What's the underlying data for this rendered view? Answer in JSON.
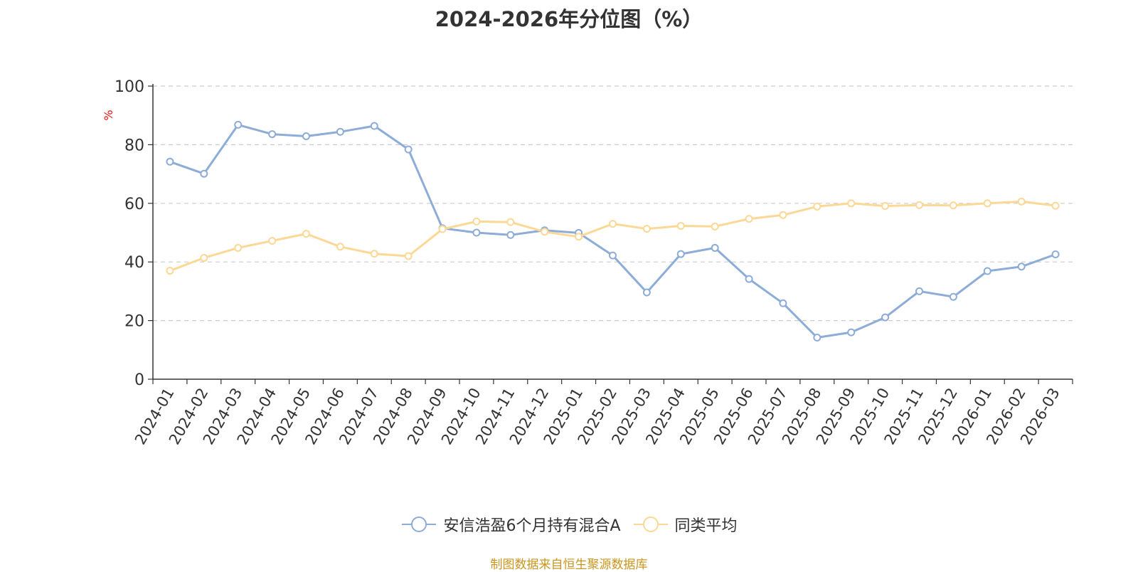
{
  "chart_data": {
    "type": "line",
    "title": "2024-2026年分位图（%）",
    "ylabel": "%",
    "xlabel": "",
    "ylim": [
      0,
      100
    ],
    "yticks": [
      0,
      20,
      40,
      60,
      80,
      100
    ],
    "grid": true,
    "legend_position": "bottom",
    "categories": [
      "2024-01",
      "2024-02",
      "2024-03",
      "2024-04",
      "2024-05",
      "2024-06",
      "2024-07",
      "2024-08",
      "2024-09",
      "2024-10",
      "2024-11",
      "2024-12",
      "2025-01",
      "2025-02",
      "2025-03",
      "2025-04",
      "2025-05",
      "2025-06",
      "2025-07",
      "2025-08",
      "2025-09",
      "2025-10",
      "2025-11",
      "2025-12",
      "2026-01",
      "2026-02",
      "2026-03"
    ],
    "series": [
      {
        "name": "安信浩盈6个月持有混合A",
        "color": "#8eacd8",
        "values": [
          74.2,
          70.1,
          86.8,
          83.6,
          82.9,
          84.4,
          86.4,
          78.4,
          51.5,
          50.0,
          49.2,
          50.8,
          49.9,
          42.2,
          29.6,
          42.7,
          44.8,
          34.2,
          25.9,
          14.2,
          16.0,
          21.1,
          30.0,
          28.1,
          36.9,
          38.4,
          42.6
        ]
      },
      {
        "name": "同类平均",
        "color": "#fbd896",
        "values": [
          37.0,
          41.4,
          44.8,
          47.2,
          49.6,
          45.2,
          42.8,
          42.0,
          51.2,
          53.8,
          53.6,
          50.3,
          48.6,
          53.0,
          51.3,
          52.3,
          52.1,
          54.7,
          56.0,
          58.9,
          60.0,
          59.1,
          59.4,
          59.3,
          60.0,
          60.6,
          59.2
        ]
      }
    ]
  },
  "source_note": "制图数据来自恒生聚源数据库"
}
